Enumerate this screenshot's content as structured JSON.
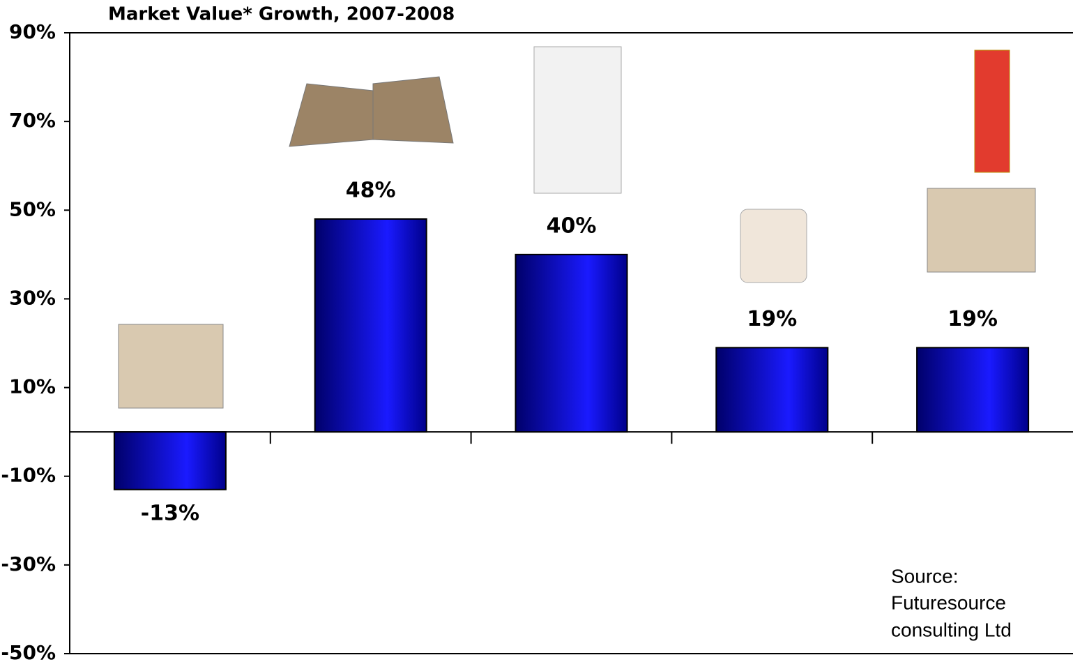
{
  "chart_data": {
    "type": "bar",
    "title": "Market Value* Growth, 2007-2008",
    "categories": [
      null,
      null,
      null,
      null,
      null
    ],
    "values": [
      -13,
      48,
      40,
      19,
      19
    ],
    "value_labels": [
      "-13%",
      "48%",
      "40%",
      "19%",
      "19%"
    ],
    "color": "#1010e0",
    "ylim": [
      -50,
      90
    ],
    "yticks": [
      {
        "value": -50,
        "label": "-50%"
      },
      {
        "value": -30,
        "label": "-30%"
      },
      {
        "value": -10,
        "label": "-10%"
      },
      {
        "value": 10,
        "label": "10%"
      },
      {
        "value": 30,
        "label": "30%"
      },
      {
        "value": 50,
        "label": "50%"
      },
      {
        "value": 70,
        "label": "70%"
      },
      {
        "value": 90,
        "label": "90%"
      }
    ],
    "grid": false,
    "annotation": [
      "Source:",
      "Futuresource",
      "consulting Ltd"
    ]
  }
}
